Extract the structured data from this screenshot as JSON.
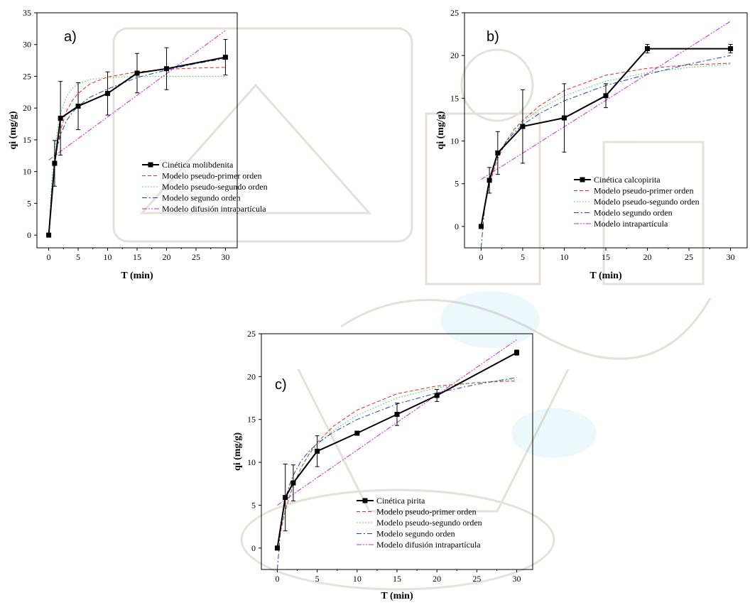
{
  "chart_data": [
    {
      "type": "line",
      "panel_label": "a)",
      "xlabel": "T (min)",
      "ylabel": "qi (mg/g)",
      "xlim": [
        -2,
        32
      ],
      "ylim": [
        -2,
        35
      ],
      "xticks": [
        0,
        5,
        10,
        15,
        20,
        25,
        30
      ],
      "yticks": [
        0,
        5,
        10,
        15,
        20,
        25,
        30,
        35
      ],
      "legend_position": "bottom-right",
      "series": [
        {
          "name": "Cinética molibdenita",
          "style": "data",
          "color": "#000000",
          "x": [
            0,
            1,
            2,
            5,
            10,
            15,
            20,
            30
          ],
          "y": [
            0,
            11.3,
            18.4,
            20.3,
            22.3,
            25.5,
            26.2,
            28.0
          ],
          "err": [
            0,
            3.6,
            5.8,
            3.7,
            3.4,
            3.1,
            3.3,
            2.8
          ]
        },
        {
          "name": "Modelo pseudo-primer orden",
          "style": "dashed",
          "color": "#e8262a",
          "x": [
            0,
            0.5,
            1,
            1.5,
            2,
            3,
            4,
            5,
            7,
            10,
            15,
            20,
            25,
            30
          ],
          "y": [
            0,
            6.5,
            11.0,
            14.2,
            16.5,
            19.5,
            21.2,
            22.3,
            23.8,
            24.9,
            25.7,
            26.1,
            26.3,
            26.4
          ]
        },
        {
          "name": "Modelo pseudo-segundo orden",
          "style": "dotted",
          "color": "#2ecc40",
          "x": [
            0,
            0.5,
            1,
            1.5,
            2,
            3,
            4,
            5,
            7,
            10,
            15,
            20,
            25,
            30
          ],
          "y": [
            0,
            8.5,
            13.5,
            16.8,
            19.2,
            21.8,
            23.1,
            23.8,
            24.5,
            24.8,
            25.0,
            25.0,
            25.0,
            25.0
          ]
        },
        {
          "name": "Modelo segundo orden",
          "style": "dashdot",
          "color": "#1f3fbf",
          "x": [
            0,
            0.5,
            1,
            1.5,
            2,
            3,
            4,
            5,
            7,
            10,
            15,
            20,
            25,
            30
          ],
          "y": [
            0,
            7.0,
            11.3,
            14.0,
            15.8,
            18.0,
            19.3,
            20.3,
            21.7,
            23.0,
            24.8,
            26.0,
            27.0,
            27.8
          ]
        },
        {
          "name": "Modelo difusión intrapartícula",
          "style": "dashdotdot",
          "color": "#cc22cc",
          "x": [
            0,
            30
          ],
          "y": [
            11.8,
            32.2
          ]
        }
      ]
    },
    {
      "type": "line",
      "panel_label": "b)",
      "xlabel": "T (min)",
      "ylabel": "qi (mg/g)",
      "xlim": [
        -2,
        32
      ],
      "ylim": [
        -2.5,
        25
      ],
      "xticks": [
        0,
        5,
        10,
        15,
        20,
        25,
        30
      ],
      "yticks": [
        0,
        5,
        10,
        15,
        20,
        25
      ],
      "legend_position": "bottom-right",
      "series": [
        {
          "name": "Cinética calcopirita",
          "style": "data",
          "color": "#000000",
          "x": [
            0,
            1,
            2,
            5,
            10,
            15,
            20,
            30
          ],
          "y": [
            0,
            5.4,
            8.6,
            11.7,
            12.7,
            15.3,
            20.8,
            20.8
          ],
          "err": [
            0,
            1.5,
            2.5,
            4.3,
            4.0,
            1.4,
            0.5,
            0.5
          ]
        },
        {
          "name": "Modelo pseudo-primer orden",
          "style": "dashed",
          "color": "#e8262a",
          "x": [
            0,
            0.5,
            1,
            1.5,
            2,
            3,
            4,
            5,
            7,
            10,
            15,
            20,
            25,
            30
          ],
          "y": [
            0,
            2.6,
            4.8,
            6.5,
            7.9,
            9.9,
            11.4,
            12.4,
            14.1,
            15.9,
            17.7,
            18.5,
            18.9,
            19.1
          ]
        },
        {
          "name": "Modelo pseudo-segundo orden",
          "style": "dotted",
          "color": "#2ecc40",
          "x": [
            0,
            0.5,
            1,
            1.5,
            2,
            3,
            4,
            5,
            7,
            10,
            15,
            20,
            25,
            30
          ],
          "y": [
            0,
            3.0,
            5.3,
            7.0,
            8.2,
            10.0,
            11.3,
            12.2,
            13.7,
            15.3,
            17.0,
            18.0,
            18.6,
            19.0
          ]
        },
        {
          "name": "Modelo segundo orden",
          "style": "dashdot",
          "color": "#1f3fbf",
          "x": [
            0,
            0.5,
            1,
            1.5,
            2,
            3,
            4,
            5,
            7,
            10,
            15,
            20,
            25,
            30
          ],
          "y": [
            -2.5,
            3.0,
            5.6,
            7.2,
            8.3,
            9.9,
            11.0,
            11.9,
            13.2,
            14.7,
            16.5,
            17.8,
            19.0,
            20.0
          ]
        },
        {
          "name": "Modelo intrapartícula",
          "style": "dashdotdot",
          "color": "#cc22cc",
          "x": [
            0,
            30
          ],
          "y": [
            5.5,
            24.0
          ]
        }
      ]
    },
    {
      "type": "line",
      "panel_label": "c)",
      "xlabel": "T (min)",
      "ylabel": "qi (mg/g)",
      "xlim": [
        -2,
        32
      ],
      "ylim": [
        -2.5,
        25
      ],
      "xticks": [
        0,
        5,
        10,
        15,
        20,
        25,
        30
      ],
      "yticks": [
        0,
        5,
        10,
        15,
        20,
        25
      ],
      "legend_position": "bottom-right",
      "series": [
        {
          "name": "Cinética pirita",
          "style": "data",
          "color": "#000000",
          "x": [
            0,
            1,
            2,
            5,
            10,
            15,
            20,
            30
          ],
          "y": [
            0,
            5.9,
            7.6,
            11.3,
            13.4,
            15.6,
            17.8,
            22.8
          ],
          "err": [
            0,
            3.9,
            2.1,
            1.8,
            0.2,
            1.3,
            0.7,
            0.3
          ]
        },
        {
          "name": "Modelo pseudo-primer orden",
          "style": "dashed",
          "color": "#e8262a",
          "x": [
            0,
            0.5,
            1,
            1.5,
            2,
            3,
            4,
            5,
            7,
            10,
            15,
            20,
            25,
            30
          ],
          "y": [
            0,
            2.3,
            4.3,
            5.9,
            7.3,
            9.4,
            11.0,
            12.3,
            14.2,
            16.1,
            18.0,
            18.9,
            19.3,
            19.5
          ]
        },
        {
          "name": "Modelo pseudo-segundo orden",
          "style": "dotted",
          "color": "#2ecc40",
          "x": [
            0,
            0.5,
            1,
            1.5,
            2,
            3,
            4,
            5,
            7,
            10,
            15,
            20,
            25,
            30
          ],
          "y": [
            0,
            2.5,
            4.5,
            6.1,
            7.4,
            9.4,
            10.9,
            12.0,
            13.7,
            15.5,
            17.5,
            18.7,
            19.3,
            19.7
          ]
        },
        {
          "name": "Modelo segundo orden",
          "style": "dashdot",
          "color": "#1f3fbf",
          "x": [
            0,
            0.5,
            1,
            1.5,
            2,
            3,
            4,
            5,
            7,
            10,
            15,
            20,
            25,
            30
          ],
          "y": [
            -2.5,
            3.2,
            5.7,
            7.3,
            8.5,
            10.2,
            11.3,
            12.2,
            13.5,
            15.0,
            16.8,
            18.1,
            19.1,
            19.9
          ]
        },
        {
          "name": "Modelo difusión intrapartícula",
          "style": "dashdotdot",
          "color": "#cc22cc",
          "x": [
            0,
            30
          ],
          "y": [
            5.0,
            24.3
          ]
        }
      ]
    }
  ]
}
